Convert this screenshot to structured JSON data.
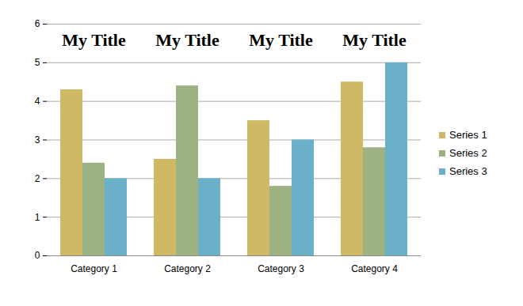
{
  "chart_data": {
    "type": "bar",
    "title": "My Title",
    "categories": [
      "Category 1",
      "Category 2",
      "Category 3",
      "Category 4"
    ],
    "series": [
      {
        "name": "Series 1",
        "color": "#cfb966",
        "values": [
          4.3,
          2.5,
          3.5,
          4.5
        ]
      },
      {
        "name": "Series 2",
        "color": "#9db283",
        "values": [
          2.4,
          4.4,
          1.8,
          2.8
        ]
      },
      {
        "name": "Series 3",
        "color": "#6ab0c9",
        "values": [
          2,
          2,
          3,
          5
        ]
      }
    ],
    "ylim": [
      0,
      6
    ],
    "yticks": [
      0,
      1,
      2,
      3,
      4,
      5,
      6
    ],
    "grid": true,
    "legend": "right"
  }
}
